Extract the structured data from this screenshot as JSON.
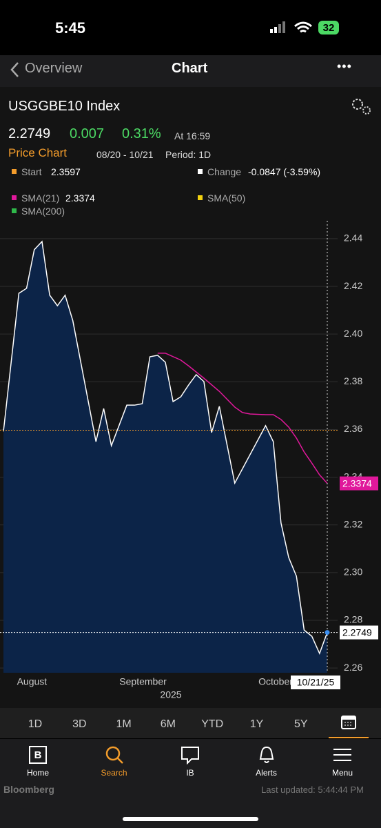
{
  "status": {
    "time": "5:45",
    "battery": "32"
  },
  "nav": {
    "back": "Overview",
    "title": "Chart",
    "more": "•••"
  },
  "security": {
    "name": "USGGBE10 Index",
    "change": "0.007",
    "pct": "0.31%",
    "time": "At 16:59"
  },
  "price_chart": {
    "label": "Price Chart",
    "range": "08/20 - 10/21",
    "period": "Period: 1D"
  },
  "legend": {
    "change_label": "Change",
    "change_value": "-0.0847 (-3.59%)",
    "change_color": "#ffffff",
    "sma50": "SMA(50)",
    "sma50_color": "#f2d20f",
    "sma200": "SMA(200)",
    "sma200_color": "#2fb84a"
  },
  "chart_data": {
    "type": "line",
    "series": [
      {
        "color": "#ffffff",
        "fill": "#0c2448",
        "x": [
          0,
          2,
          3,
          4,
          5,
          6,
          7,
          8,
          9,
          12,
          13,
          14,
          16,
          17,
          18,
          19,
          20,
          21,
          22,
          23,
          24,
          25,
          26,
          27,
          28,
          30,
          34,
          35,
          36,
          37,
          38,
          39,
          40,
          41,
          42
        ],
        "values": [
          2.3592,
          2.4171,
          2.4192,
          2.4354,
          2.4388,
          2.4163,
          2.4119,
          2.4163,
          2.4056,
          2.3549,
          2.3688,
          2.3532,
          2.3702,
          2.3702,
          2.3708,
          2.3905,
          2.3911,
          2.3882,
          2.3717,
          2.3737,
          2.3786,
          2.383,
          2.3801,
          2.3587,
          2.3697,
          2.3375,
          2.3616,
          2.3549,
          2.3208,
          2.3063,
          2.2985,
          2.2759,
          2.2733,
          2.2661,
          2.2749
        ]
      },
      {
        "name": "SMA(21)",
        "color": "#e0189b",
        "x": [
          20,
          21,
          23,
          24,
          26,
          28,
          30,
          31,
          32,
          34,
          35,
          36,
          37,
          38,
          39,
          40,
          41,
          42
        ],
        "values": [
          2.392,
          2.392,
          2.3891,
          2.3867,
          2.3815,
          2.376,
          2.3694,
          2.3671,
          2.3665,
          2.3662,
          2.3662,
          2.3642,
          2.361,
          2.3564,
          2.3506,
          2.3459,
          2.341,
          2.3374
        ]
      }
    ],
    "start": {
      "label": "Start",
      "value": 2.3597,
      "color": "#f39c2b"
    },
    "xlim": [
      0,
      42
    ],
    "ylim": [
      2.258,
      2.4475
    ],
    "yticks": [
      2.26,
      2.28,
      {
        "value": 2.3,
        "label": "2.30"
      },
      2.32,
      2.34,
      2.36,
      2.38,
      {
        "value": 2.4,
        "label": "2.40"
      },
      2.42,
      2.44
    ],
    "xticks": [
      {
        "value": 3.7,
        "label": "August"
      },
      {
        "value": 18.1,
        "label": "September"
      },
      {
        "value": 35.3,
        "label": "October"
      }
    ],
    "year": "2025",
    "cursor_label": "10/21/25",
    "grid": true
  },
  "periods": [
    "1D",
    "3D",
    "1M",
    "6M",
    "YTD",
    "1Y",
    "5Y"
  ],
  "tabs": [
    "Home",
    "Search",
    "IB",
    "Alerts",
    "Menu"
  ],
  "footer": {
    "brand": "Bloomberg",
    "updated": "Last updated: 5:44:44 PM"
  }
}
